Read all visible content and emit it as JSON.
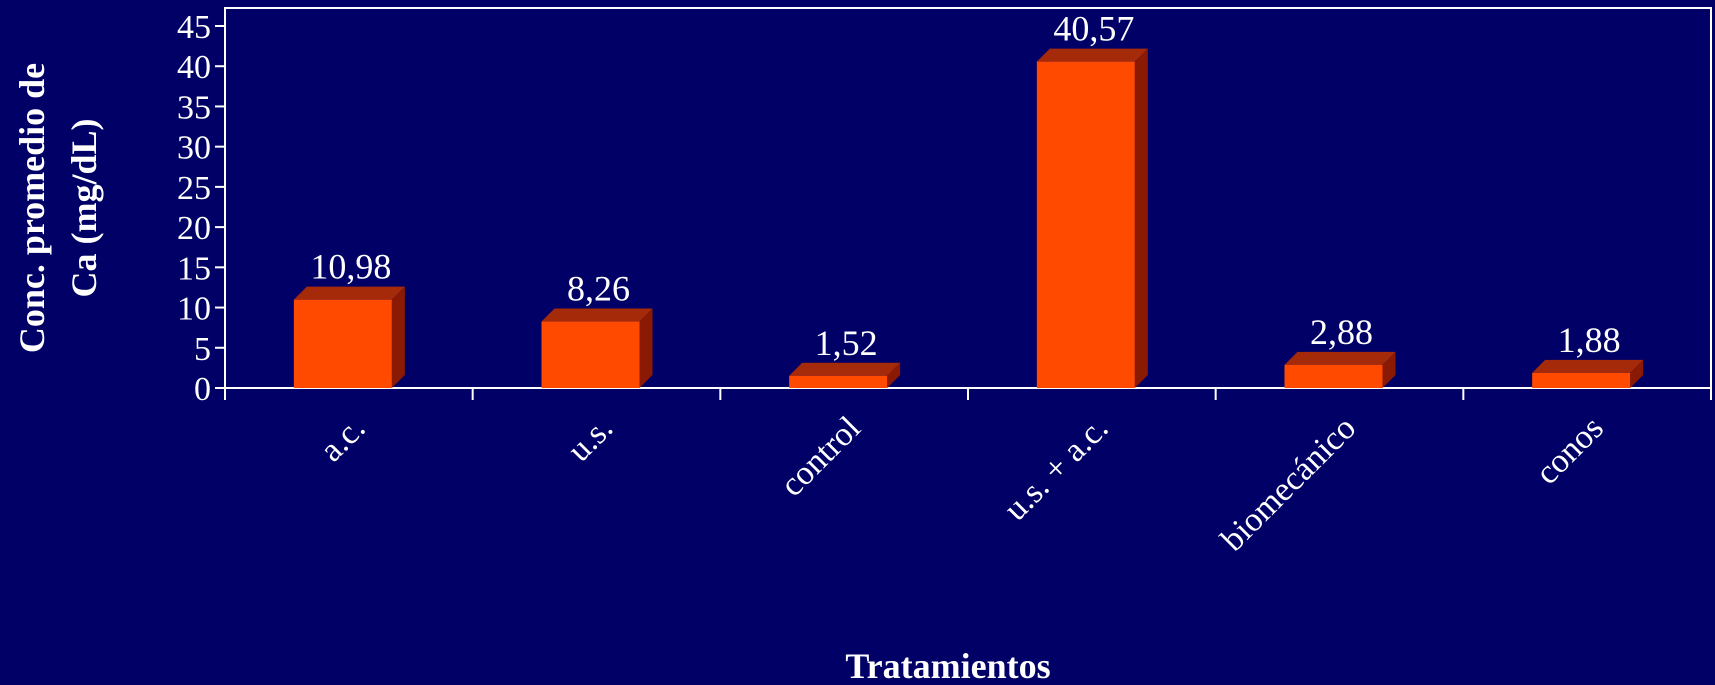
{
  "chart_data": {
    "type": "bar",
    "categories": [
      "a.c.",
      "u.s.",
      "control",
      "u.s. + a.c.",
      "biomecánico",
      "conos"
    ],
    "values": [
      10.98,
      8.26,
      1.52,
      40.57,
      2.88,
      1.88
    ],
    "data_labels": [
      "10,98",
      "8,26",
      "1,52",
      "40,57",
      "2,88",
      "1,88"
    ],
    "xlabel": "Tratamientos",
    "ylabel_lines": [
      "Conc. promedio de",
      "Ca (mg/dL)"
    ],
    "ylim": [
      0,
      45
    ],
    "yticks": [
      0,
      5,
      10,
      15,
      20,
      25,
      30,
      35,
      40,
      45
    ],
    "grid": false,
    "legend": "none",
    "style": "3d-column"
  },
  "colors": {
    "background": "#000066",
    "bar_front": "#ff4a00",
    "bar_side": "#8b1a05",
    "bar_top": "#a52a0a",
    "axis": "#ffffff",
    "text": "#ffffff"
  }
}
